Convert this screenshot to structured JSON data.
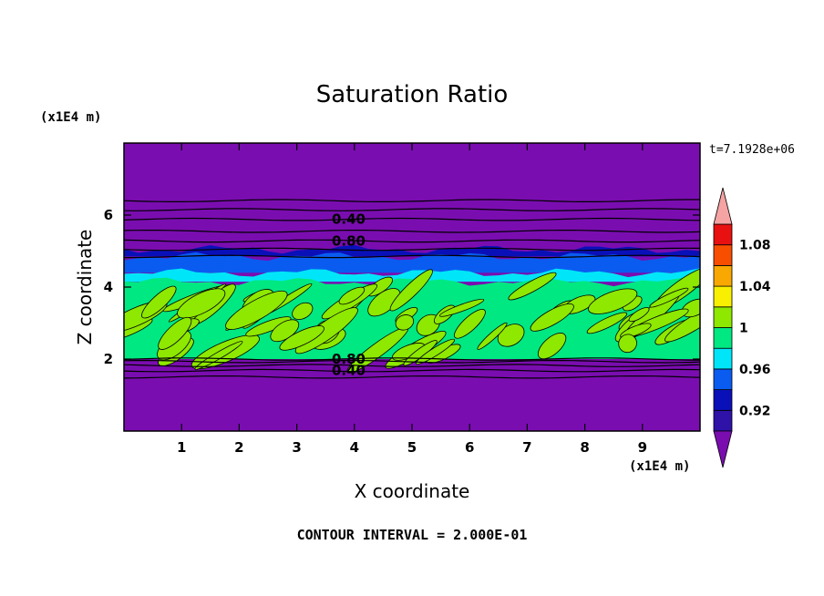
{
  "chart_data": {
    "type": "heatmap",
    "title": "Saturation Ratio",
    "xlabel": "X coordinate",
    "ylabel": "Z coordinate",
    "x_units": "(x1E4 m)",
    "y_units": "(x1E4 m)",
    "time_label": "t=7.1928e+06",
    "footer": "CONTOUR INTERVAL = 2.000E-01",
    "xlim": [
      0,
      10
    ],
    "ylim": [
      0,
      8
    ],
    "xticks": [
      "1",
      "2",
      "3",
      "4",
      "5",
      "6",
      "7",
      "8",
      "9"
    ],
    "yticks": [
      "2",
      "4",
      "6"
    ],
    "colorbar": {
      "levels": [
        0.9,
        0.92,
        0.94,
        0.96,
        0.98,
        1.0,
        1.02,
        1.04,
        1.06,
        1.08,
        1.1
      ],
      "colors": [
        "#7a0db0",
        "#2f12a8",
        "#0a10b8",
        "#0a5cf0",
        "#00e6f8",
        "#00e882",
        "#8ee800",
        "#f8f000",
        "#f8a800",
        "#f84e00",
        "#e81010",
        "#f5a3a3"
      ],
      "tick_labels": [
        {
          "label": "0.92",
          "value": 0.92
        },
        {
          "label": "0.96",
          "value": 0.96
        },
        {
          "label": "1",
          "value": 1.0
        },
        {
          "label": "1.04",
          "value": 1.04
        },
        {
          "label": "1.08",
          "value": 1.08
        }
      ]
    },
    "contour_labels": [
      {
        "text": "0.40",
        "x": 3.9,
        "z": 5.88
      },
      {
        "text": "0.80",
        "x": 3.9,
        "z": 5.28
      },
      {
        "text": "0.80",
        "x": 3.9,
        "z": 2.0
      },
      {
        "text": "0.40",
        "x": 3.9,
        "z": 1.68
      }
    ],
    "layers": [
      {
        "z_bottom": 4.85,
        "z_top": 5.05,
        "value": 0.93
      },
      {
        "z_bottom": 4.4,
        "z_top": 4.85,
        "value": 0.95
      },
      {
        "z_bottom": 4.15,
        "z_top": 4.4,
        "value": 0.97
      },
      {
        "z_bottom": 2.0,
        "z_top": 4.15,
        "value": 0.99
      }
    ]
  }
}
